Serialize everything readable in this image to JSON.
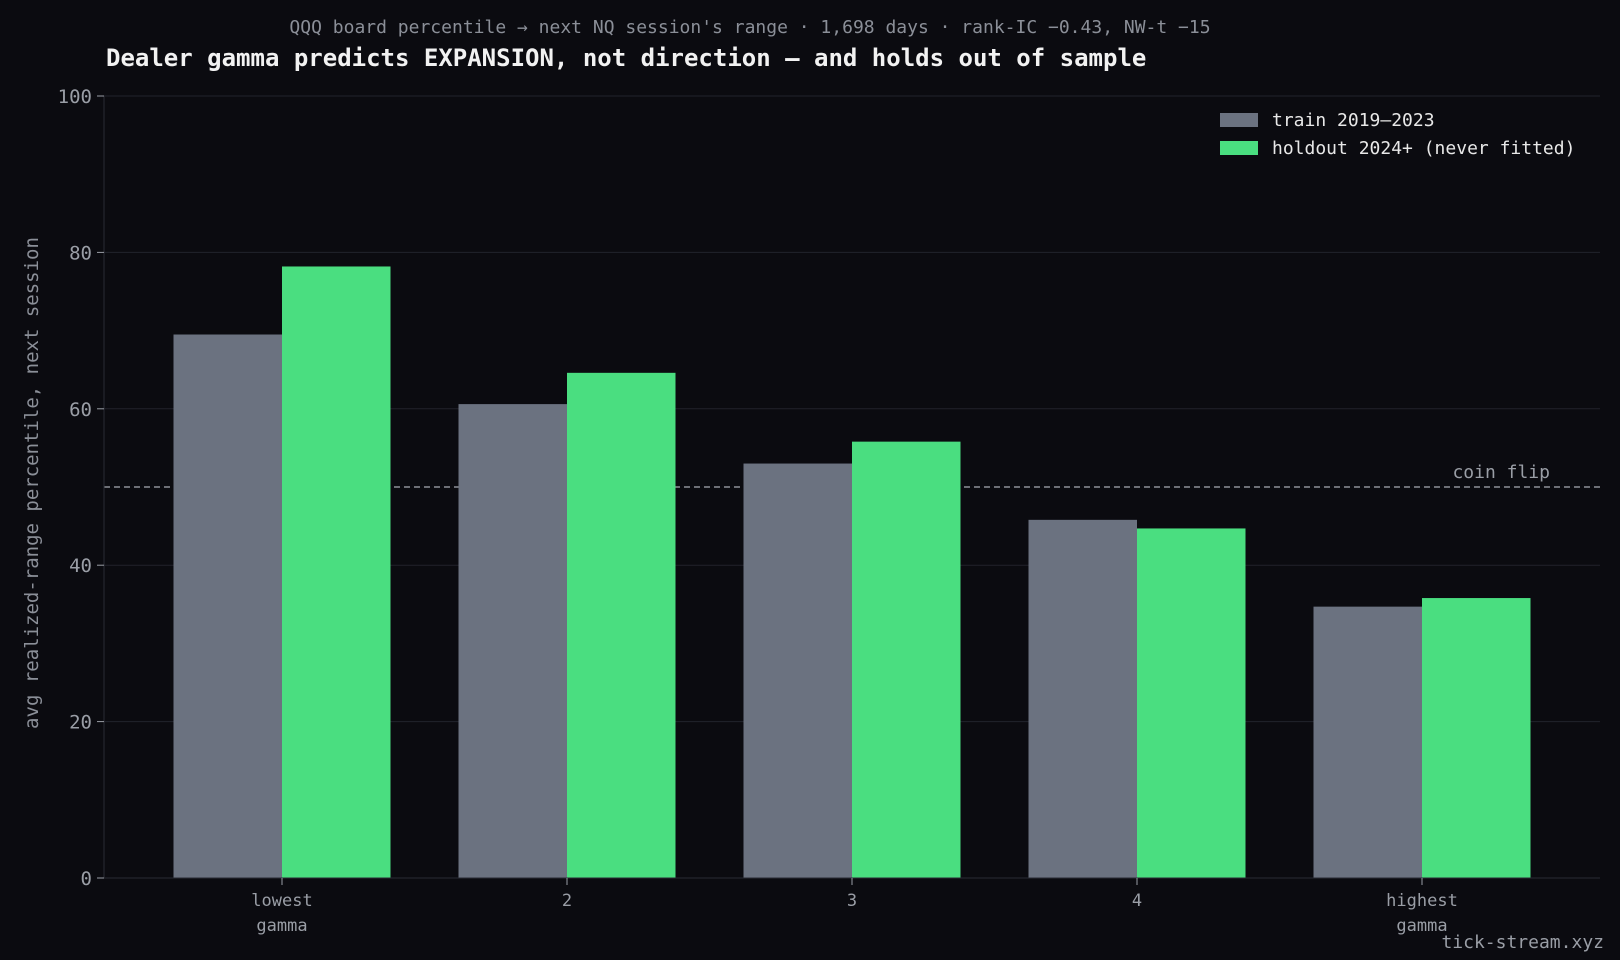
{
  "chart_data": {
    "type": "bar",
    "subtitle": "QQQ board percentile → next NQ session's range · 1,698 days · rank-IC −0.43, NW-t −15",
    "title": "Dealer gamma predicts EXPANSION, not direction — and holds out of sample",
    "ylabel": "avg realized-range percentile, next session",
    "xlabel": "",
    "categories": [
      [
        "lowest",
        "gamma"
      ],
      [
        "2"
      ],
      [
        "3"
      ],
      [
        "4"
      ],
      [
        "highest",
        "gamma"
      ]
    ],
    "series": [
      {
        "name": "train 2019–2023",
        "color": "#6b7280",
        "values": [
          69.5,
          60.6,
          53.0,
          45.8,
          34.7
        ]
      },
      {
        "name": "holdout 2024+ (never fitted)",
        "color": "#4ade80",
        "values": [
          78.2,
          64.6,
          55.8,
          44.7,
          35.8
        ]
      }
    ],
    "ylim": [
      0,
      100
    ],
    "yticks": [
      0,
      20,
      40,
      60,
      80,
      100
    ],
    "grid": true,
    "legend_position": "top-right",
    "reference_line": {
      "value": 50,
      "label": "coin flip"
    },
    "watermark": "tick-stream.xyz"
  }
}
